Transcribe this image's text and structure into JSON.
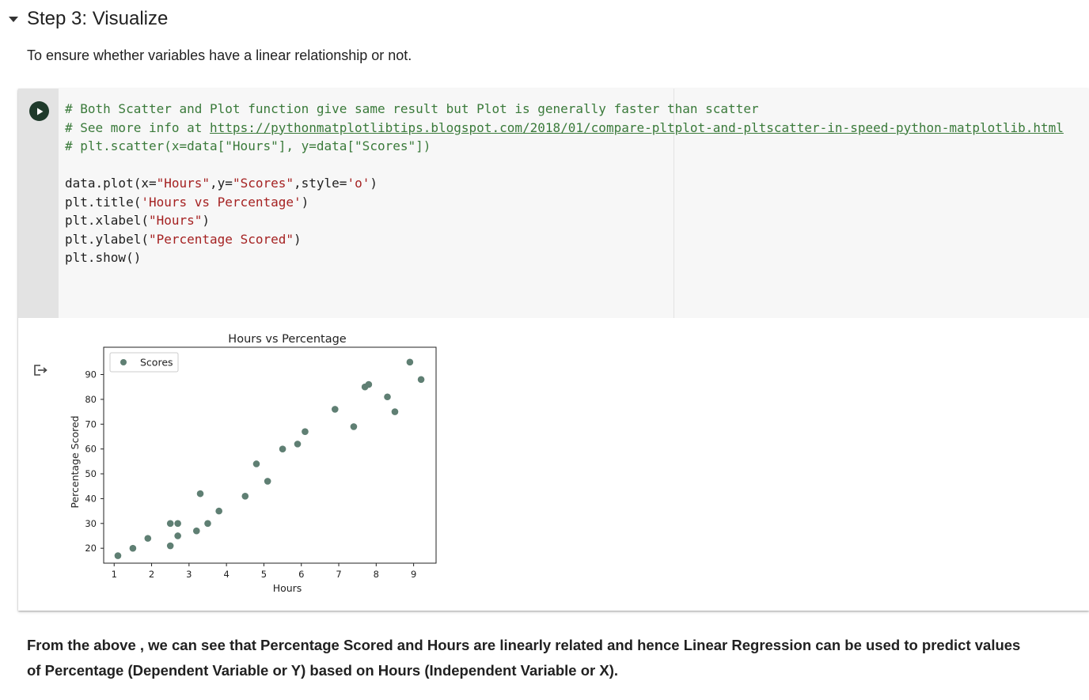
{
  "section": {
    "title": "Step 3: Visualize",
    "intro": "To ensure whether variables have a linear relationship or not."
  },
  "code_cell": {
    "comment1": "# Both Scatter and Plot function give same result but Plot is generally faster than scatter",
    "comment2_prefix": "# See more info at ",
    "comment2_link": "https://pythonmatplotlibtips.blogspot.com/2018/01/compare-pltplot-and-pltscatter-in-speed-python-matplotlib.html",
    "comment3": "# plt.scatter(x=data[\"Hours\"], y=data[\"Scores\"])",
    "line1_a": "data.plot(x=",
    "line1_s1": "\"Hours\"",
    "line1_b": ",y=",
    "line1_s2": "\"Scores\"",
    "line1_c": ",style=",
    "line1_s3": "'o'",
    "line1_d": ")",
    "line2_a": "plt.title(",
    "line2_s": "'Hours vs Percentage'",
    "line2_b": ")",
    "line3_a": "plt.xlabel(",
    "line3_s": "\"Hours\"",
    "line3_b": ")",
    "line4_a": "plt.ylabel(",
    "line4_s": "\"Percentage Scored\"",
    "line4_b": ")",
    "line5": "plt.show()"
  },
  "chart_data": {
    "type": "scatter",
    "title": "Hours vs Percentage",
    "xlabel": "Hours",
    "ylabel": "Percentage Scored",
    "legend": [
      "Scores"
    ],
    "legend_position": "top-left",
    "xlim": [
      0.72,
      9.6
    ],
    "ylim": [
      14,
      101
    ],
    "xticks": [
      1,
      2,
      3,
      4,
      5,
      6,
      7,
      8,
      9
    ],
    "yticks": [
      20,
      30,
      40,
      50,
      60,
      70,
      80,
      90
    ],
    "marker_color": "#5f7f73",
    "series": [
      {
        "name": "Scores",
        "x": [
          1.1,
          1.5,
          1.9,
          2.5,
          2.5,
          2.7,
          2.7,
          3.2,
          3.3,
          3.5,
          3.8,
          4.5,
          4.8,
          5.1,
          5.5,
          5.9,
          6.1,
          6.9,
          7.4,
          7.7,
          7.8,
          8.3,
          8.5,
          8.9,
          9.2
        ],
        "y": [
          17,
          20,
          24,
          21,
          30,
          25,
          30,
          27,
          42,
          30,
          35,
          41,
          54,
          47,
          60,
          62,
          67,
          76,
          69,
          85,
          86,
          81,
          75,
          95,
          88
        ]
      }
    ]
  },
  "conclusion": "From the above , we can see that Percentage Scored and Hours are linearly related and hence Linear Regression can be used to predict values of Percentage (Dependent Variable or Y) based on Hours (Independent Variable or X)."
}
